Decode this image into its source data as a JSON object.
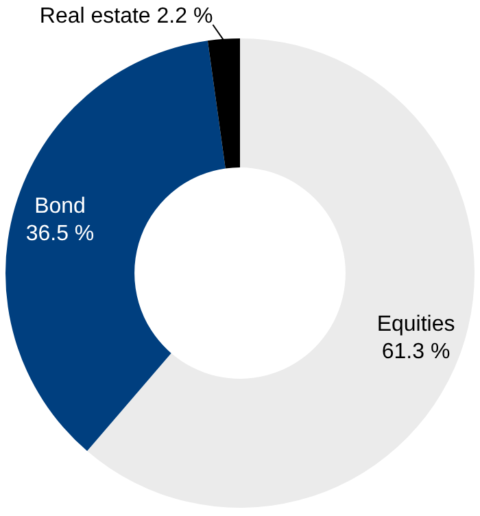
{
  "chart_data": {
    "type": "donut",
    "categories": [
      "Equities",
      "Bond",
      "Real estate"
    ],
    "values": [
      61.3,
      36.5,
      2.2
    ],
    "colors": [
      "#ebebeb",
      "#003f7f",
      "#000000"
    ],
    "value_labels": [
      "61.3 %",
      "36.5 %",
      "2.2 %"
    ],
    "legend": false
  }
}
